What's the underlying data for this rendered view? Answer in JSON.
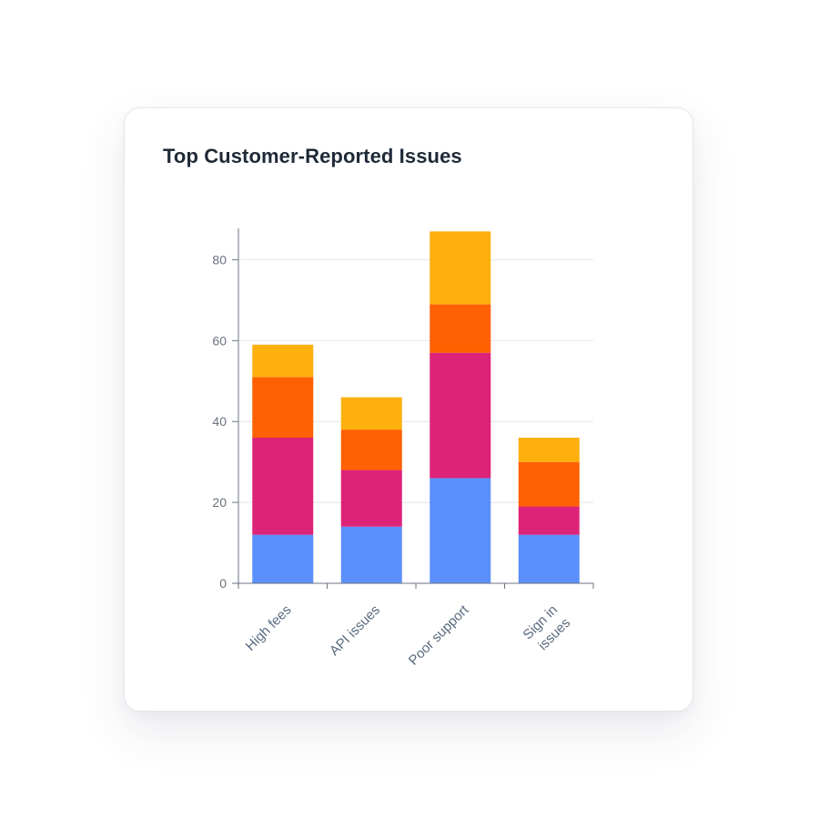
{
  "card": {
    "title": "Top Customer-Reported Issues"
  },
  "chart_data": {
    "type": "bar",
    "stacked": true,
    "title": "Top Customer-Reported Issues",
    "xlabel": "",
    "ylabel": "",
    "ylim": [
      0,
      90
    ],
    "yticks": [
      0,
      20,
      40,
      60,
      80
    ],
    "grid": true,
    "legend": "none",
    "categories": [
      "High fees",
      "API issues",
      "Poor support",
      "Sign in issues"
    ],
    "category_label_lines": [
      [
        "High fees"
      ],
      [
        "API issues"
      ],
      [
        "Poor support"
      ],
      [
        "Sign in",
        "issues"
      ]
    ],
    "series": [
      {
        "color": "#5b8ffb",
        "values": [
          12,
          14,
          26,
          12
        ]
      },
      {
        "color": "#dd2378",
        "values": [
          24,
          14,
          31,
          7
        ]
      },
      {
        "color": "#fe6002",
        "values": [
          15,
          10,
          12,
          11
        ]
      },
      {
        "color": "#feb00e",
        "values": [
          8,
          8,
          18,
          6
        ]
      }
    ],
    "colors": {
      "grid": "#e6e9f2",
      "axis": "#6b7280"
    }
  }
}
